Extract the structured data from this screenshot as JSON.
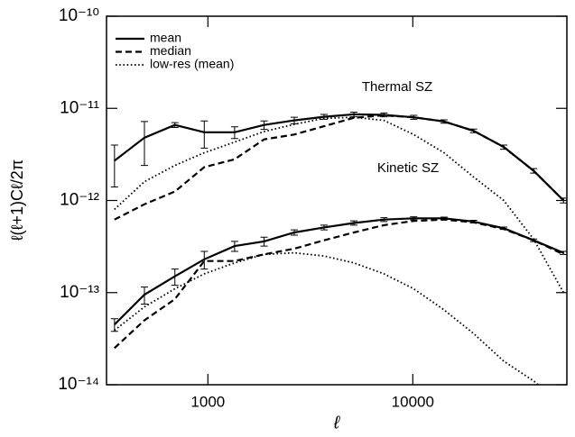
{
  "chart_data": {
    "type": "line",
    "x_label": "ℓ",
    "y_label": "ℓ(ℓ+1)Cℓ/2π",
    "xscale": "log",
    "yscale": "log",
    "xlim": [
      320,
      56500
    ],
    "ylim": [
      1e-14,
      1e-10
    ],
    "xticks": [
      1000,
      10000
    ],
    "yticks": [
      {
        "value": 1e-14,
        "label": "10⁻¹⁴"
      },
      {
        "value": 1e-13,
        "label": "10⁻¹³"
      },
      {
        "value": 1e-12,
        "label": "10⁻¹²"
      },
      {
        "value": 1e-11,
        "label": "10⁻¹¹"
      },
      {
        "value": 1e-10,
        "label": "10⁻¹⁰"
      }
    ],
    "legend": "upper left",
    "color": "#000000",
    "series": [
      {
        "name": "mean",
        "dash": "solid"
      },
      {
        "name": "median",
        "dash": "dashed"
      },
      {
        "name": "low-res (mean)",
        "dash": "dotted"
      }
    ],
    "x": [
      350,
      490,
      690,
      960,
      1350,
      1880,
      2640,
      3690,
      5160,
      7230,
      10100,
      14200,
      19800,
      27800,
      38900,
      54400
    ],
    "groups": [
      {
        "label": "Thermal SZ",
        "lines": [
          {
            "values": [
              2.7e-12,
              4.8e-12,
              6.6e-12,
              5.5e-12,
              5.5e-12,
              6.6e-12,
              7.4e-12,
              8.1e-12,
              8.6e-12,
              8.5e-12,
              8e-12,
              7.2e-12,
              5.7e-12,
              3.8e-12,
              2.1e-12,
              1e-12
            ],
            "errors": [
              1.3e-12,
              2.4e-12,
              4e-13,
              1.8e-12,
              8e-13,
              7e-13,
              6e-13,
              5e-13,
              5e-13,
              4e-13,
              4e-13,
              3e-13,
              2.5e-13,
              2e-13,
              1.2e-13,
              6e-14
            ]
          },
          {
            "values": [
              6.2e-13,
              9.1e-13,
              1.25e-12,
              2.3e-12,
              2.8e-12,
              4.6e-12,
              5.2e-12,
              6.4e-12,
              7.9e-12,
              8.4e-12,
              8e-12,
              7.2e-12,
              5.7e-12,
              3.8e-12,
              2.1e-12,
              1e-12
            ]
          },
          {
            "values": [
              8e-13,
              1.6e-12,
              2.4e-12,
              3.3e-12,
              4.3e-12,
              5.6e-12,
              6.7e-12,
              7.8e-12,
              8e-12,
              7.4e-12,
              5.2e-12,
              3.3e-12,
              1.8e-12,
              1e-12,
              3.8e-13,
              1e-13
            ]
          }
        ]
      },
      {
        "label": "Kinetic SZ",
        "lines": [
          {
            "values": [
              4.5e-14,
              9.5e-14,
              1.5e-13,
              2.3e-13,
              3.2e-13,
              3.6e-13,
              4.5e-13,
              5.1e-13,
              5.7e-13,
              6.2e-13,
              6.4e-13,
              6.4e-13,
              5.9e-13,
              5e-13,
              3.7e-13,
              2.7e-13
            ],
            "errors": [
              7e-15,
              2e-14,
              3e-14,
              5e-14,
              4e-14,
              4e-14,
              3e-14,
              3e-14,
              3e-14,
              3e-14,
              2.5e-14,
              2e-14,
              2e-14,
              1.5e-14,
              1.2e-14,
              1e-14
            ]
          },
          {
            "values": [
              2.5e-14,
              5e-14,
              8.5e-14,
              2.2e-13,
              2.2e-13,
              2.6e-13,
              3e-13,
              3.7e-13,
              4.5e-13,
              5.4e-13,
              6e-13,
              6.2e-13,
              5.8e-13,
              4.9e-13,
              3.7e-13,
              2.6e-13
            ]
          },
          {
            "values": [
              3.9e-14,
              7e-14,
              1.1e-13,
              1.6e-13,
              2.1e-13,
              2.6e-13,
              2.7e-13,
              2.5e-13,
              2.1e-13,
              1.6e-13,
              1.1e-13,
              6.5e-14,
              3.6e-14,
              1.8e-14,
              1.1e-14,
              6e-15
            ]
          }
        ]
      }
    ]
  }
}
